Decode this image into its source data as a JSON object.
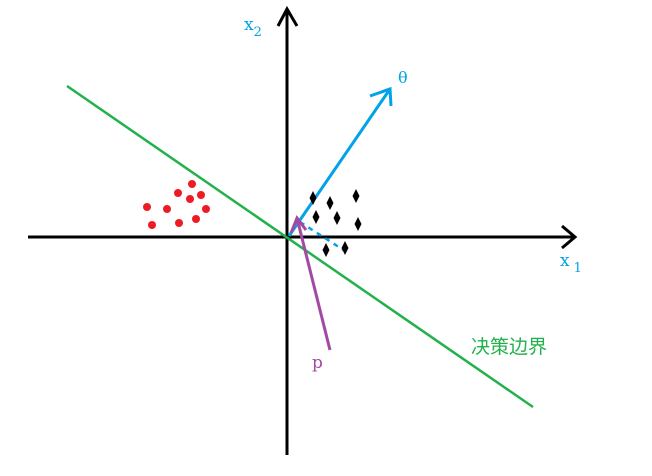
{
  "labels": {
    "x1": "x",
    "x1_sub": "1",
    "x2": "x",
    "x2_sub": "2",
    "theta": "θ",
    "p": "p",
    "boundary": "决策边界"
  },
  "colors": {
    "axis": "#000000",
    "boundary": "#22b14c",
    "theta": "#00a2e8",
    "p": "#a349a4",
    "red_class": "#ed1c24",
    "black_class": "#000000"
  }
}
